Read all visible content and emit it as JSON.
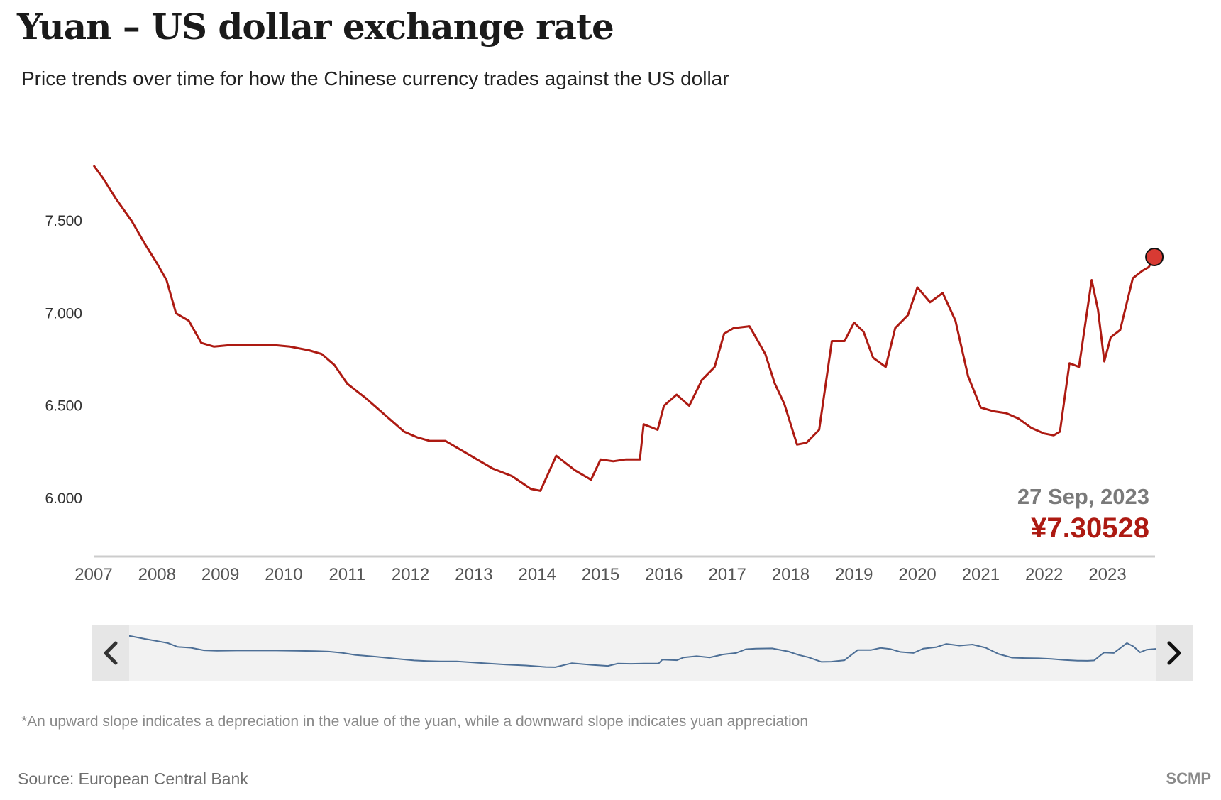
{
  "header": {
    "title": "Yuan – US dollar exchange rate",
    "subtitle": "Price trends over time for how the Chinese currency trades against the US dollar"
  },
  "tooltip": {
    "date": "27 Sep, 2023",
    "value": "¥7.30528"
  },
  "footer": {
    "footnote": "*An upward slope indicates a depreciation in the value of the yuan, while a downward slope indicates yuan appreciation",
    "source": "Source: European Central Bank",
    "brand": "SCMP"
  },
  "colors": {
    "line": "#ad1a12",
    "navigator_line": "#4d6f96",
    "navigator_bg": "#f2f2f2",
    "navigator_handle": "#e6e6e6",
    "axis": "#cccccc"
  },
  "icons": {
    "navigator_left": "chevron-left-icon",
    "navigator_right": "chevron-right-icon",
    "latest_point": "circle-marker-icon"
  },
  "chart_data": {
    "type": "line",
    "title": "Yuan – US dollar exchange rate",
    "subtitle": "Price trends over time for how the Chinese currency trades against the US dollar",
    "xlabel": "",
    "ylabel": "",
    "ylim": [
      5.7,
      7.85
    ],
    "xlim": [
      2007.0,
      2023.75
    ],
    "yticks": [
      6.0,
      6.5,
      7.0,
      7.5
    ],
    "ytick_labels": [
      "6.000",
      "6.500",
      "7.000",
      "7.500"
    ],
    "xticks": [
      "2007",
      "2008",
      "2009",
      "2010",
      "2011",
      "2012",
      "2013",
      "2014",
      "2015",
      "2016",
      "2017",
      "2018",
      "2019",
      "2020",
      "2021",
      "2022",
      "2023"
    ],
    "grid": false,
    "legend": "none",
    "series": [
      {
        "x": [
          2007.0,
          2007.15,
          2007.35,
          2007.6,
          2007.8,
          2008.0,
          2008.15,
          2008.3,
          2008.5,
          2008.7,
          2008.9,
          2009.2,
          2009.5,
          2009.8,
          2010.1,
          2010.4,
          2010.6,
          2010.8,
          2011.0,
          2011.3,
          2011.6,
          2011.9,
          2012.1,
          2012.3,
          2012.55,
          2012.8,
          2013.0,
          2013.3,
          2013.6,
          2013.9,
          2014.05,
          2014.3,
          2014.6,
          2014.85,
          2015.0,
          2015.2,
          2015.4,
          2015.62,
          2015.68,
          2015.9,
          2016.0,
          2016.2,
          2016.4,
          2016.6,
          2016.8,
          2016.95,
          2017.1,
          2017.35,
          2017.6,
          2017.75,
          2017.9,
          2018.1,
          2018.25,
          2018.45,
          2018.65,
          2018.85,
          2019.0,
          2019.15,
          2019.3,
          2019.5,
          2019.65,
          2019.85,
          2020.0,
          2020.2,
          2020.4,
          2020.6,
          2020.8,
          2021.0,
          2021.2,
          2021.4,
          2021.6,
          2021.8,
          2022.0,
          2022.15,
          2022.25,
          2022.4,
          2022.55,
          2022.75,
          2022.85,
          2022.95,
          2023.05,
          2023.2,
          2023.4,
          2023.55,
          2023.65,
          2023.74
        ],
        "y": [
          7.8,
          7.73,
          7.62,
          7.5,
          7.38,
          7.27,
          7.18,
          7.0,
          6.96,
          6.84,
          6.82,
          6.83,
          6.83,
          6.83,
          6.82,
          6.8,
          6.78,
          6.72,
          6.62,
          6.54,
          6.45,
          6.36,
          6.33,
          6.31,
          6.31,
          6.26,
          6.22,
          6.16,
          6.12,
          6.05,
          6.04,
          6.23,
          6.15,
          6.1,
          6.21,
          6.2,
          6.21,
          6.21,
          6.4,
          6.37,
          6.5,
          6.56,
          6.5,
          6.64,
          6.71,
          6.89,
          6.92,
          6.93,
          6.78,
          6.62,
          6.51,
          6.29,
          6.3,
          6.37,
          6.85,
          6.85,
          6.95,
          6.9,
          6.76,
          6.71,
          6.92,
          6.99,
          7.14,
          7.06,
          7.11,
          6.96,
          6.66,
          6.49,
          6.47,
          6.46,
          6.43,
          6.38,
          6.35,
          6.34,
          6.36,
          6.73,
          6.71,
          7.18,
          7.02,
          6.74,
          6.87,
          6.91,
          7.19,
          7.23,
          7.25,
          7.305
        ]
      }
    ],
    "latest_point": {
      "date": "27 Sep, 2023",
      "value": 7.30528
    }
  }
}
